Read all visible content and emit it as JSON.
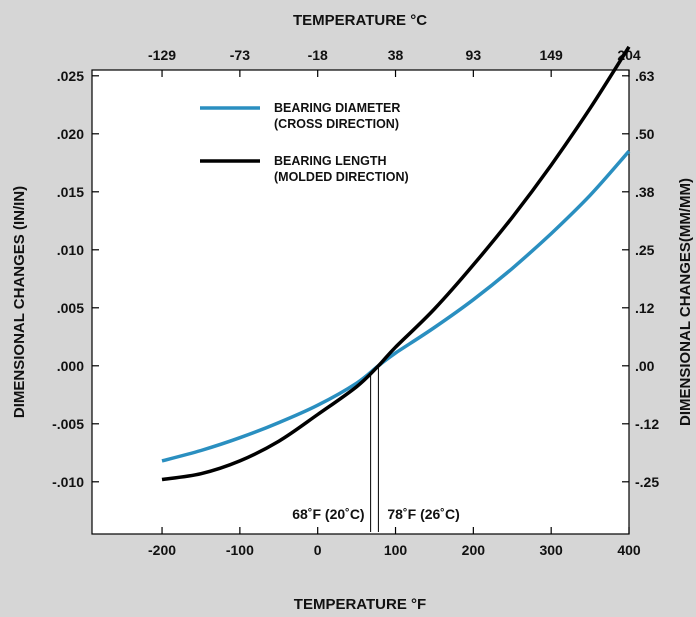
{
  "chart_data": {
    "type": "line",
    "title": "",
    "xlabel": "TEMPERATURE °F",
    "x2label": "TEMPERATURE °C",
    "ylabel": "DIMENSIONAL CHANGES (IN/IN)",
    "y2label": "DIMENSIONAL CHANGES(MM/MM)",
    "xlim": [
      -290,
      400
    ],
    "ylim": [
      -0.0145,
      0.0255
    ],
    "x_ticks": [
      {
        "value": -200,
        "label": "-200"
      },
      {
        "value": -100,
        "label": "-100"
      },
      {
        "value": 0,
        "label": "0"
      },
      {
        "value": 100,
        "label": "100"
      },
      {
        "value": 200,
        "label": "200"
      },
      {
        "value": 300,
        "label": "300"
      },
      {
        "value": 400,
        "label": "400"
      }
    ],
    "x2_ticks": [
      {
        "value": -200,
        "label": "-129"
      },
      {
        "value": -100,
        "label": "-73"
      },
      {
        "value": 0,
        "label": "-18"
      },
      {
        "value": 100,
        "label": "38"
      },
      {
        "value": 200,
        "label": "93"
      },
      {
        "value": 300,
        "label": "149"
      },
      {
        "value": 400,
        "label": "204"
      }
    ],
    "y_ticks": [
      {
        "value": 0.025,
        "label": ".025"
      },
      {
        "value": 0.02,
        "label": ".020"
      },
      {
        "value": 0.015,
        "label": ".015"
      },
      {
        "value": 0.01,
        "label": ".010"
      },
      {
        "value": 0.005,
        "label": ".005"
      },
      {
        "value": 0.0,
        "label": ".000"
      },
      {
        "value": -0.005,
        "label": "-.005"
      },
      {
        "value": -0.01,
        "label": "-.010"
      }
    ],
    "y2_ticks": [
      {
        "value": 0.025,
        "label": ".63"
      },
      {
        "value": 0.02,
        "label": ".50"
      },
      {
        "value": 0.015,
        "label": ".38"
      },
      {
        "value": 0.01,
        "label": ".25"
      },
      {
        "value": 0.005,
        "label": ".12"
      },
      {
        "value": 0.0,
        "label": ".00"
      },
      {
        "value": -0.005,
        "label": "-.12"
      },
      {
        "value": -0.01,
        "label": "-.25"
      }
    ],
    "series": [
      {
        "name": "BEARING DIAMETER",
        "name_sub": "(CROSS DIRECTION)",
        "color": "#2a8fc0",
        "x": [
          -200,
          -150,
          -100,
          -50,
          0,
          50,
          78,
          100,
          150,
          200,
          250,
          300,
          350,
          400
        ],
        "y": [
          -0.0082,
          -0.0073,
          -0.0062,
          -0.0049,
          -0.0034,
          -0.0015,
          0.0,
          0.0011,
          0.0033,
          0.0057,
          0.0084,
          0.0114,
          0.0147,
          0.0185
        ]
      },
      {
        "name": "BEARING LENGTH",
        "name_sub": "(MOLDED DIRECTION)",
        "color": "#000000",
        "x": [
          -200,
          -150,
          -100,
          -50,
          0,
          50,
          78,
          100,
          150,
          200,
          250,
          300,
          350,
          400
        ],
        "y": [
          -0.0098,
          -0.0093,
          -0.0082,
          -0.0065,
          -0.0042,
          -0.0018,
          0.0,
          0.0016,
          0.0049,
          0.0087,
          0.0128,
          0.0173,
          0.0222,
          0.0275
        ]
      }
    ],
    "annotations": [
      {
        "x": 68,
        "label": "68˚F (20˚C)"
      },
      {
        "x": 78,
        "label": "78˚F (26˚C)"
      }
    ],
    "legend_position": "top-left",
    "grid": false
  }
}
